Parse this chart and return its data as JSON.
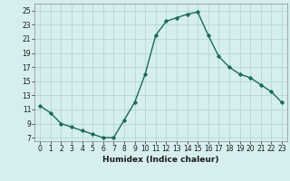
{
  "x": [
    0,
    1,
    2,
    3,
    4,
    5,
    6,
    7,
    8,
    9,
    10,
    11,
    12,
    13,
    14,
    15,
    16,
    17,
    18,
    19,
    20,
    21,
    22,
    23
  ],
  "y": [
    11.5,
    10.5,
    9.0,
    8.5,
    8.0,
    7.5,
    7.0,
    7.0,
    9.5,
    12.0,
    16.0,
    21.5,
    23.5,
    24.0,
    24.5,
    24.8,
    21.5,
    18.5,
    17.0,
    16.0,
    15.5,
    14.5,
    13.5,
    12.0
  ],
  "xlabel": "Humidex (Indice chaleur)",
  "line_color": "#1a6b5a",
  "marker": "D",
  "marker_size": 1.8,
  "bg_color": "#d6eeee",
  "grid_color": "#aad4d4",
  "xlim": [
    -0.5,
    23.5
  ],
  "ylim": [
    6.5,
    26.0
  ],
  "yticks": [
    7,
    9,
    11,
    13,
    15,
    17,
    19,
    21,
    23,
    25
  ],
  "xticks": [
    0,
    1,
    2,
    3,
    4,
    5,
    6,
    7,
    8,
    9,
    10,
    11,
    12,
    13,
    14,
    15,
    16,
    17,
    18,
    19,
    20,
    21,
    22,
    23
  ],
  "xlabel_fontsize": 6.5,
  "tick_fontsize": 5.5,
  "linewidth": 1.0
}
